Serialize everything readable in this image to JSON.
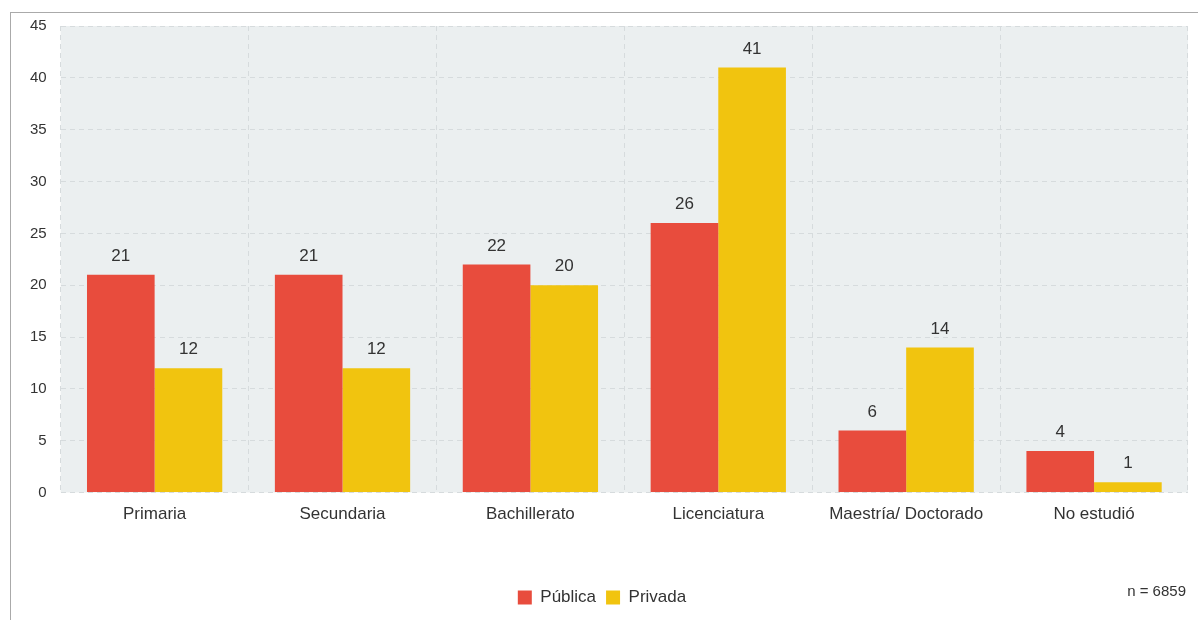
{
  "chart_data": {
    "type": "bar",
    "categories": [
      "Primaria",
      "Secundaria",
      "Bachillerato",
      "Licenciatura",
      "Maestría/ Doctorado",
      "No estudió"
    ],
    "series": [
      {
        "name": "Pública",
        "color": "#e84c3d",
        "values": [
          21,
          21,
          22,
          26,
          6,
          4
        ]
      },
      {
        "name": "Privada",
        "color": "#f1c40f",
        "values": [
          12,
          12,
          20,
          41,
          14,
          1
        ]
      }
    ],
    "ylim": [
      0,
      45
    ],
    "yticks": [
      0,
      5,
      10,
      15,
      20,
      25,
      30,
      35,
      40,
      45
    ],
    "grid": true,
    "legend": "bottom",
    "data_labels": true,
    "annotations": [
      "n = 6859"
    ]
  }
}
